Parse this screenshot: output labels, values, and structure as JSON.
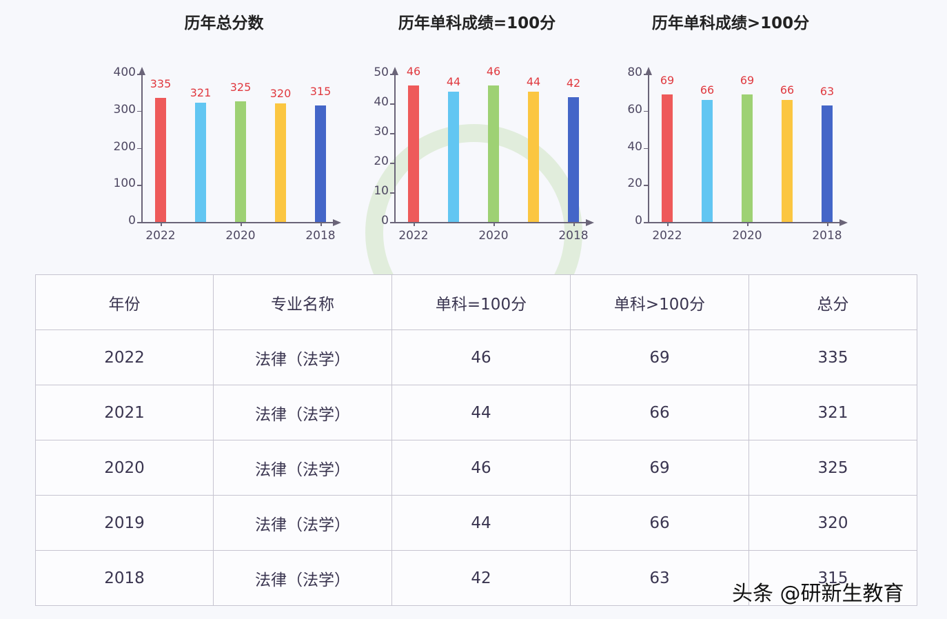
{
  "chart_data": [
    {
      "type": "bar",
      "title": "历年总分数",
      "categories": [
        "2022",
        "2021",
        "2020",
        "2019",
        "2018"
      ],
      "x_tick_labels": [
        "2022",
        "2020",
        "2018"
      ],
      "values": [
        335,
        321,
        325,
        320,
        315
      ],
      "colors": [
        "#ee5a5a",
        "#62c6f2",
        "#9ed174",
        "#fbc641",
        "#4466c8"
      ],
      "yticks": [
        0,
        100,
        200,
        300,
        400
      ],
      "ylim": [
        0,
        400
      ],
      "xlabel": "",
      "ylabel": "",
      "grid": false,
      "legend": "none"
    },
    {
      "type": "bar",
      "title": "历年单科成绩=100分",
      "categories": [
        "2022",
        "2021",
        "2020",
        "2019",
        "2018"
      ],
      "x_tick_labels": [
        "2022",
        "2020",
        "2018"
      ],
      "values": [
        46,
        44,
        46,
        44,
        42
      ],
      "colors": [
        "#ee5a5a",
        "#62c6f2",
        "#9ed174",
        "#fbc641",
        "#4466c8"
      ],
      "yticks": [
        0,
        10,
        20,
        30,
        40,
        50
      ],
      "ylim": [
        0,
        50
      ],
      "xlabel": "",
      "ylabel": "",
      "grid": false,
      "legend": "none"
    },
    {
      "type": "bar",
      "title": "历年单科成绩>100分",
      "categories": [
        "2022",
        "2021",
        "2020",
        "2019",
        "2018"
      ],
      "x_tick_labels": [
        "2022",
        "2020",
        "2018"
      ],
      "values": [
        69,
        66,
        69,
        66,
        63
      ],
      "colors": [
        "#ee5a5a",
        "#62c6f2",
        "#9ed174",
        "#fbc641",
        "#4466c8"
      ],
      "yticks": [
        0,
        20,
        40,
        60,
        80
      ],
      "ylim": [
        0,
        80
      ],
      "xlabel": "",
      "ylabel": "",
      "grid": false,
      "legend": "none"
    }
  ],
  "table": {
    "headers": [
      "年份",
      "专业名称",
      "单科=100分",
      "单科>100分",
      "总分"
    ],
    "rows": [
      [
        "2022",
        "法律（法学）",
        "46",
        "69",
        "335"
      ],
      [
        "2021",
        "法律（法学）",
        "44",
        "66",
        "321"
      ],
      [
        "2020",
        "法律（法学）",
        "46",
        "69",
        "325"
      ],
      [
        "2019",
        "法律（法学）",
        "44",
        "66",
        "320"
      ],
      [
        "2018",
        "法律（法学）",
        "42",
        "63",
        "315"
      ]
    ]
  },
  "watermark": {
    "credit": "头条 @研新生教育",
    "brand": "研新生"
  }
}
